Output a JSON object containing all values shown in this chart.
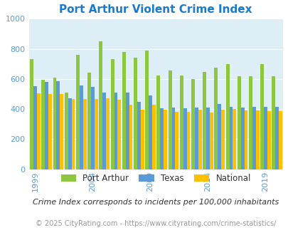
{
  "title": "Port Arthur Violent Crime Index",
  "title_color": "#1a7acc",
  "years": [
    1999,
    2000,
    2001,
    2002,
    2003,
    2004,
    2005,
    2006,
    2007,
    2008,
    2009,
    2010,
    2011,
    2012,
    2013,
    2014,
    2015,
    2016,
    2017,
    2018,
    2019,
    2020
  ],
  "port_arthur": [
    730,
    595,
    610,
    510,
    760,
    640,
    850,
    730,
    780,
    740,
    790,
    625,
    655,
    625,
    600,
    645,
    675,
    700,
    620,
    620,
    700,
    620
  ],
  "texas": [
    550,
    580,
    585,
    470,
    555,
    545,
    510,
    510,
    510,
    450,
    490,
    405,
    410,
    405,
    410,
    410,
    435,
    415,
    410,
    415,
    415,
    415
  ],
  "national": [
    505,
    500,
    500,
    465,
    465,
    465,
    470,
    460,
    430,
    395,
    430,
    395,
    380,
    380,
    395,
    375,
    395,
    400,
    390,
    390,
    385,
    385
  ],
  "ylim": [
    0,
    1000
  ],
  "yticks": [
    0,
    200,
    400,
    600,
    800,
    1000
  ],
  "xtick_years": [
    1999,
    2004,
    2009,
    2014,
    2019
  ],
  "bar_colors": [
    "#8dc63f",
    "#5b9bd5",
    "#ffc000"
  ],
  "legend_labels": [
    "Port Arthur",
    "Texas",
    "National"
  ],
  "plot_bg": "#deeef6",
  "grid_color": "#ffffff",
  "subtitle": "Crime Index corresponds to incidents per 100,000 inhabitants",
  "footer": "© 2025 CityRating.com - https://www.cityrating.com/crime-statistics/",
  "subtitle_color": "#333333",
  "footer_color": "#999999",
  "tick_color": "#5b9bd5",
  "title_fontsize": 11,
  "subtitle_fontsize": 8,
  "footer_fontsize": 7
}
